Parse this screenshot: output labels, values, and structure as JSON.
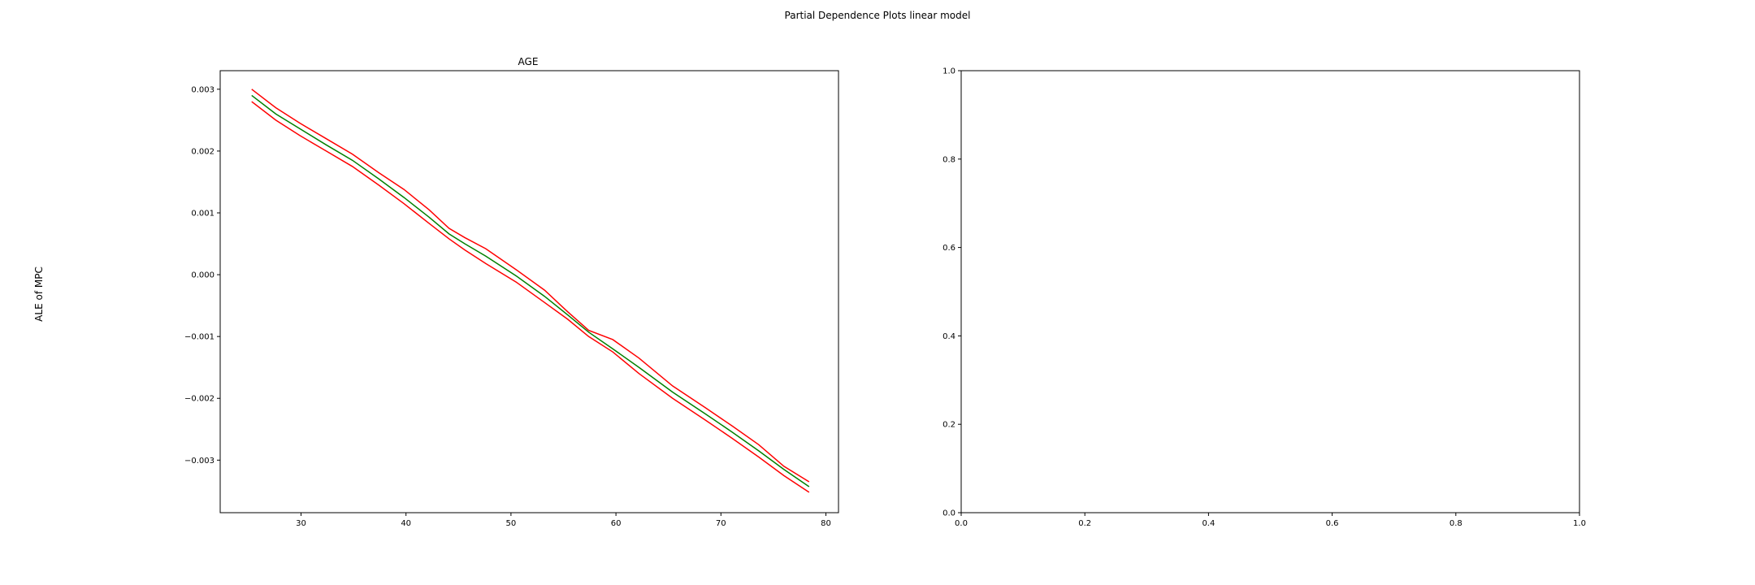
{
  "figure": {
    "suptitle": "Partial Dependence Plots linear model",
    "ylabel": "ALE of MPC"
  },
  "colors": {
    "center": "#008000",
    "bounds": "#ff0000",
    "axes": "#000000"
  },
  "chart_data": [
    {
      "type": "line",
      "title": "AGE",
      "xlabel": "",
      "ylabel": "ALE of MPC",
      "xlim": [
        22.3,
        81.2
      ],
      "ylim": [
        -0.00385,
        0.0033
      ],
      "xticks": [
        30,
        40,
        50,
        60,
        70,
        80
      ],
      "xtick_labels": [
        "30",
        "40",
        "50",
        "60",
        "70",
        "80"
      ],
      "yticks": [
        -0.003,
        -0.002,
        -0.001,
        0.0,
        0.001,
        0.002,
        0.003
      ],
      "ytick_labels": [
        "−0.003",
        "−0.002",
        "−0.001",
        "0.000",
        "0.001",
        "0.002",
        "0.003"
      ],
      "grid": false,
      "series": [
        {
          "role": "upper",
          "color": "#ff0000",
          "x": [
            25.3,
            27.6,
            29.9,
            32.4,
            34.9,
            37.4,
            39.8,
            42.2,
            44.1,
            45.6,
            47.6,
            50.5,
            53.2,
            55.4,
            57.4,
            59.7,
            62.2,
            65.4,
            68.5,
            71.1,
            73.6,
            76.0,
            78.4
          ],
          "y": [
            0.003,
            0.0027,
            0.00245,
            0.0022,
            0.00195,
            0.00165,
            0.00138,
            0.00105,
            0.00075,
            0.0006,
            0.00042,
            8e-05,
            -0.00025,
            -0.0006,
            -0.0009,
            -0.00105,
            -0.00135,
            -0.0018,
            -0.00215,
            -0.00245,
            -0.00275,
            -0.0031,
            -0.00335
          ]
        },
        {
          "role": "center",
          "color": "#008000",
          "x": [
            25.3,
            27.6,
            29.9,
            32.4,
            34.9,
            37.4,
            39.8,
            42.2,
            44.1,
            45.6,
            47.6,
            50.5,
            53.2,
            55.4,
            57.4,
            59.7,
            62.2,
            65.4,
            68.5,
            71.1,
            73.6,
            76.0,
            78.4
          ],
          "y": [
            0.0029,
            0.0026,
            0.00236,
            0.0021,
            0.00185,
            0.00155,
            0.00125,
            0.00093,
            0.00066,
            0.0005,
            0.0003,
            -2e-05,
            -0.00035,
            -0.00065,
            -0.00093,
            -0.0012,
            -0.0015,
            -0.0019,
            -0.00225,
            -0.00255,
            -0.00285,
            -0.00315,
            -0.00343
          ]
        },
        {
          "role": "lower",
          "color": "#ff0000",
          "x": [
            25.3,
            27.6,
            29.9,
            32.4,
            34.9,
            37.4,
            39.8,
            42.2,
            44.1,
            45.6,
            47.6,
            50.5,
            53.2,
            55.4,
            57.4,
            59.7,
            62.2,
            65.4,
            68.5,
            71.1,
            73.6,
            76.0,
            78.4
          ],
          "y": [
            0.0028,
            0.0025,
            0.00225,
            0.002,
            0.00175,
            0.00145,
            0.00115,
            0.00083,
            0.00058,
            0.0004,
            0.00018,
            -0.00012,
            -0.00045,
            -0.00072,
            -0.001,
            -0.00125,
            -0.0016,
            -0.002,
            -0.00235,
            -0.00265,
            -0.00295,
            -0.00325,
            -0.00352
          ]
        }
      ]
    },
    {
      "type": "line",
      "title": "",
      "xlabel": "",
      "ylabel": "",
      "xlim": [
        0.0,
        1.0
      ],
      "ylim": [
        0.0,
        1.0
      ],
      "xticks": [
        0.0,
        0.2,
        0.4,
        0.6,
        0.8,
        1.0
      ],
      "xtick_labels": [
        "0.0",
        "0.2",
        "0.4",
        "0.6",
        "0.8",
        "1.0"
      ],
      "yticks": [
        0.0,
        0.2,
        0.4,
        0.6,
        0.8,
        1.0
      ],
      "ytick_labels": [
        "0.0",
        "0.2",
        "0.4",
        "0.6",
        "0.8",
        "1.0"
      ],
      "grid": false,
      "series": []
    }
  ]
}
